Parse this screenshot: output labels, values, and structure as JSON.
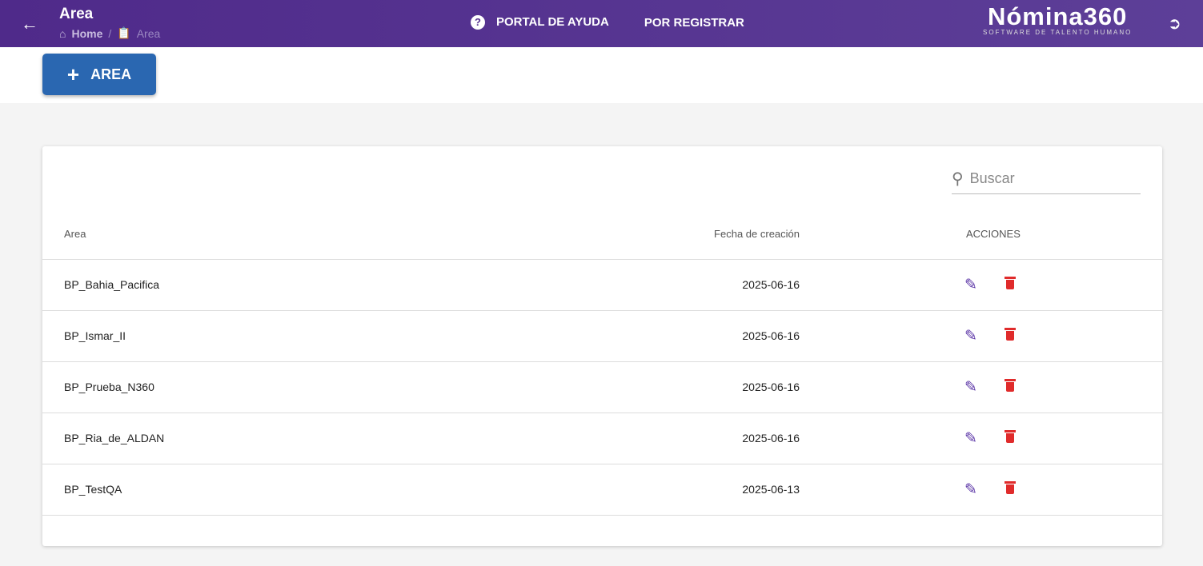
{
  "header": {
    "title": "Area",
    "breadcrumb": {
      "home": "Home",
      "current": "Area"
    },
    "nav": [
      "PORTAL DE AYUDA",
      "POR REGISTRAR"
    ],
    "logo": {
      "name": "Nómina360",
      "tagline": "SOFTWARE DE TALENTO HUMANO"
    }
  },
  "toolbar": {
    "add_label": "AREA"
  },
  "table": {
    "search_placeholder": "Buscar",
    "columns": [
      "Area",
      "Fecha de creación",
      "ACCIONES"
    ],
    "rows": [
      {
        "area": "BP_Bahia_Pacifica",
        "fecha": "2025-06-16"
      },
      {
        "area": "BP_Ismar_II",
        "fecha": "2025-06-16"
      },
      {
        "area": "BP_Prueba_N360",
        "fecha": "2025-06-16"
      },
      {
        "area": "BP_Ria_de_ALDAN",
        "fecha": "2025-06-16"
      },
      {
        "area": "BP_TestQA",
        "fecha": "2025-06-13"
      }
    ]
  },
  "colors": {
    "header": "#55318f",
    "primary_button": "#2a67b1",
    "edit": "#5a34a6",
    "delete": "#e02b2b"
  }
}
